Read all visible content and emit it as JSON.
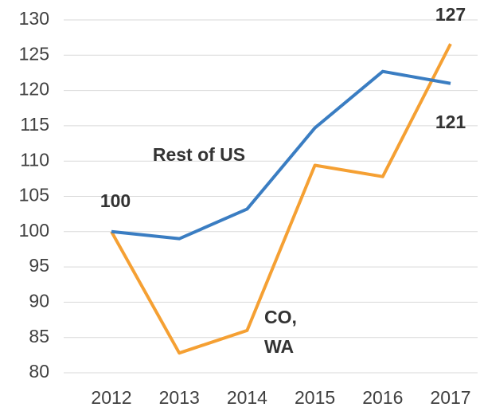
{
  "chart_data": {
    "type": "line",
    "x": [
      "2012",
      "2013",
      "2014",
      "2015",
      "2016",
      "2017"
    ],
    "series": [
      {
        "name": "Rest of US",
        "color": "#3a7dc2",
        "values": [
          100,
          99,
          103.2,
          114.7,
          122.7,
          121
        ],
        "value_labels": [
          null,
          null,
          null,
          null,
          null,
          "121"
        ]
      },
      {
        "name": "CO, WA",
        "color": "#f5a033",
        "values": [
          100,
          82.8,
          86,
          109.4,
          107.8,
          126.6
        ],
        "value_labels": [
          "100",
          null,
          null,
          null,
          null,
          "127"
        ]
      }
    ],
    "ylim": [
      80,
      130
    ],
    "yticks": [
      80,
      85,
      90,
      95,
      100,
      105,
      110,
      115,
      120,
      125,
      130
    ],
    "grid": true
  }
}
